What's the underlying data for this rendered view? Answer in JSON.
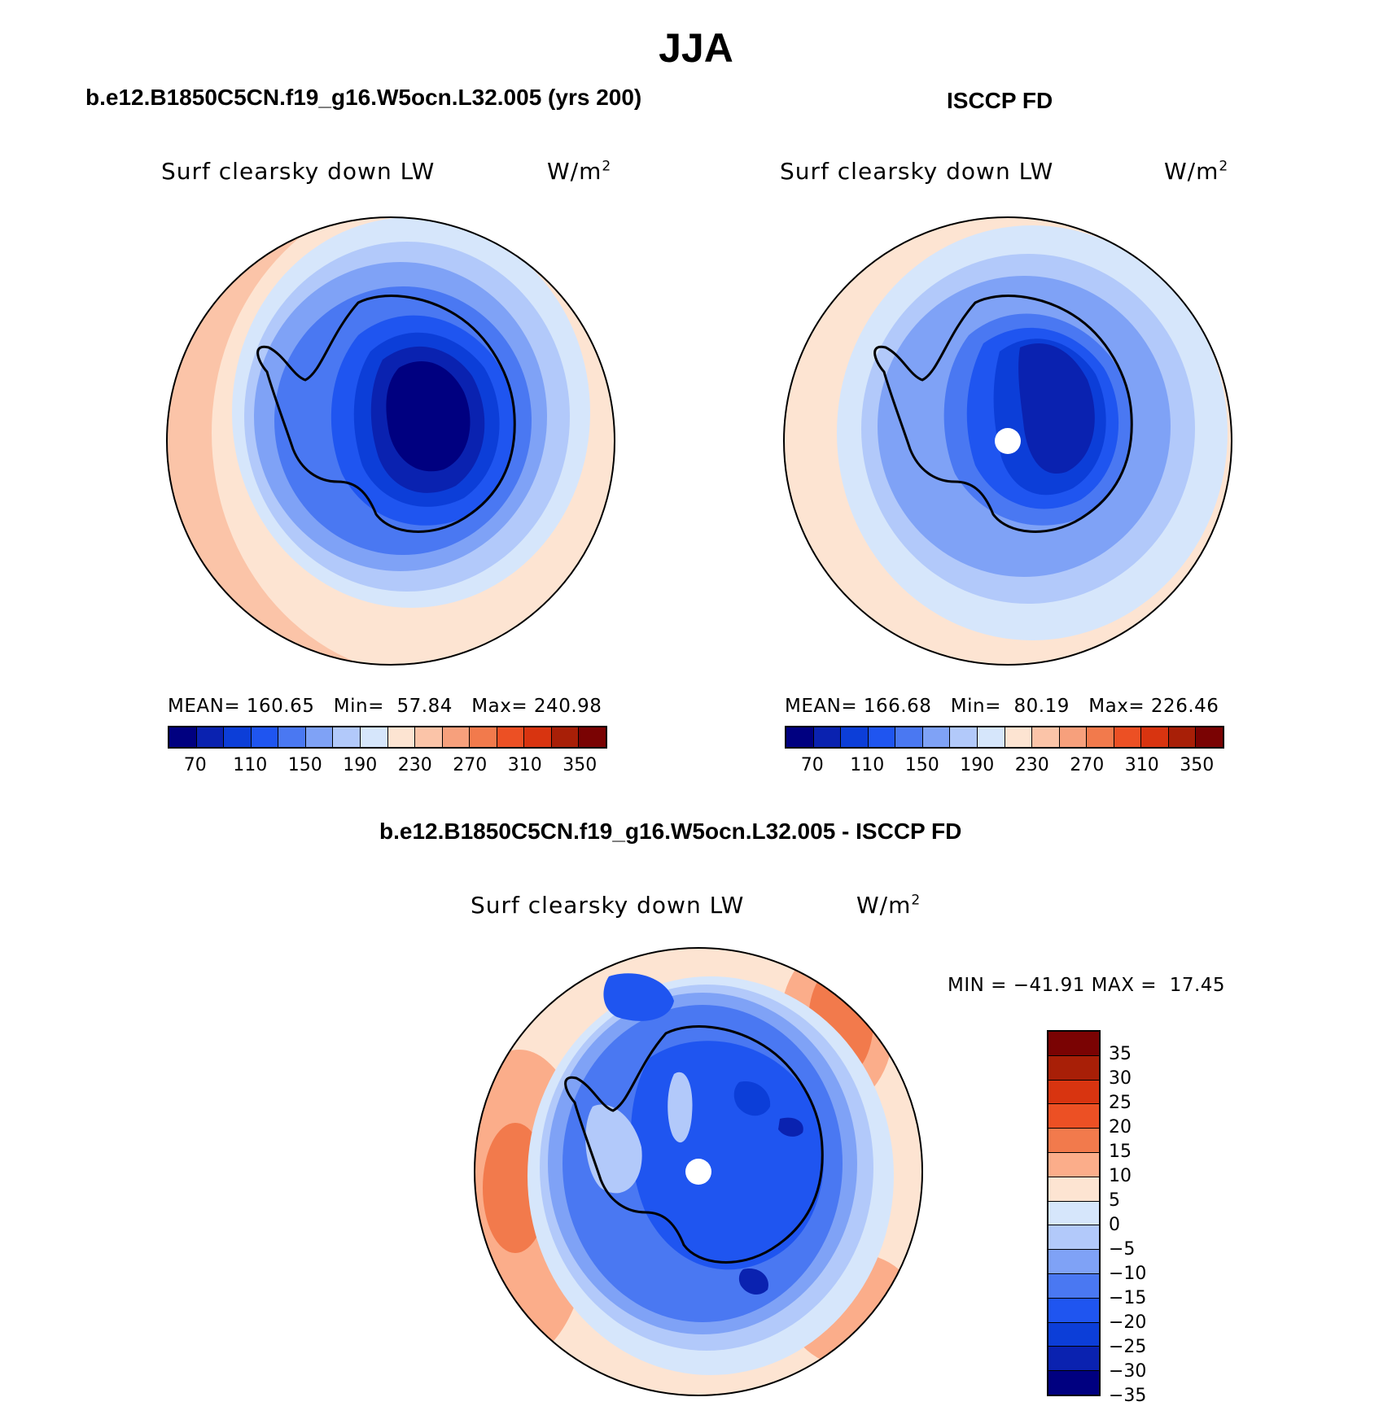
{
  "page": {
    "season": "JJA",
    "colors": {
      "abs": [
        "#000080",
        "#0a22b0",
        "#0c3ed8",
        "#1f55f0",
        "#4a78f2",
        "#7fa2f6",
        "#b2c9fa",
        "#d6e6fb",
        "#fde4d2",
        "#fbc4a8",
        "#f7a07c",
        "#f27a4c",
        "#ec5024",
        "#d83410",
        "#a81f07",
        "#7a0303"
      ],
      "diff": [
        "#7a0303",
        "#a81f07",
        "#d83410",
        "#ec5024",
        "#f27a4c",
        "#fbad8a",
        "#fde4d2",
        "#d6e6fb",
        "#b2c9fa",
        "#7fa2f6",
        "#4a78f2",
        "#1f55f0",
        "#0c3ed8",
        "#0a22b0",
        "#000080"
      ]
    }
  },
  "panels": {
    "model": {
      "title": "b.e12.B1850C5CN.f19_g16.W5ocn.L32.005 (yrs 200)",
      "variable": "Surf clearsky down LW",
      "units": "W/m",
      "units_sup": "2",
      "stats": "MEAN= 160.65   Min=  57.84   Max= 240.98",
      "ticks": [
        "70",
        "110",
        "150",
        "190",
        "230",
        "270",
        "310",
        "350"
      ]
    },
    "obs": {
      "title": "ISCCP FD",
      "variable": "Surf clearsky down LW",
      "units": "W/m",
      "units_sup": "2",
      "stats": "MEAN= 166.68   Min=  80.19   Max= 226.46",
      "ticks": [
        "70",
        "110",
        "150",
        "190",
        "230",
        "270",
        "310",
        "350"
      ]
    },
    "diff": {
      "title": "b.e12.B1850C5CN.f19_g16.W5ocn.L32.005 - ISCCP FD",
      "variable": "Surf clearsky down LW",
      "units": "W/m",
      "units_sup": "2",
      "stats": "MIN = −41.91 MAX =  17.45",
      "ticks": [
        "35",
        "30",
        "25",
        "20",
        "15",
        "10",
        "5",
        "0",
        "−5",
        "−10",
        "−15",
        "−20",
        "−25",
        "−30",
        "−35"
      ]
    }
  }
}
